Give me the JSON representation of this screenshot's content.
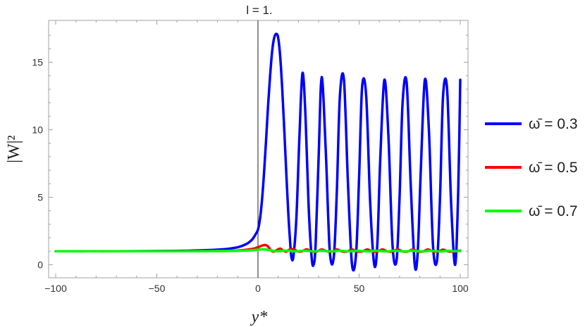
{
  "chart_data": {
    "type": "line",
    "title": "l = 1.",
    "xlabel": "y*",
    "ylabel": "|W|²",
    "xlim": [
      -100,
      100
    ],
    "ylim": [
      -1,
      18
    ],
    "xticks": [
      -100,
      -50,
      0,
      50,
      100
    ],
    "xtick_labels": [
      "−100",
      "−50",
      "0",
      "50",
      "100"
    ],
    "yticks": [
      0,
      5,
      10,
      15
    ],
    "ytick_labels": [
      "0",
      "5",
      "10",
      "15"
    ],
    "grid": false,
    "legend_position": "right",
    "series": [
      {
        "name": "ω̄ = 0.3",
        "color": "#0000ff",
        "x": [
          -100,
          -80,
          -60,
          -40,
          -30,
          -20,
          -15,
          -10,
          -7,
          -5,
          -3,
          -2,
          -1,
          0,
          1,
          2,
          3,
          4,
          5,
          6,
          7,
          8,
          9,
          10,
          11,
          12,
          13,
          14,
          15,
          15.8,
          16.5,
          17.5,
          19,
          20.5,
          22,
          23.5,
          25,
          26.5,
          27.5,
          28.5,
          30,
          31.5,
          33.5,
          35.5,
          37.5,
          39,
          40.5,
          42.5,
          44.5,
          46.5,
          48.5,
          50,
          51.5,
          53.5,
          55.5,
          57.5,
          59,
          60.5,
          62.5,
          64.5,
          66.5,
          68.5,
          70,
          71.5,
          73.5,
          75.5,
          77.5,
          79,
          80.5,
          82.5,
          84.5,
          86.5,
          88.5,
          90,
          91.5,
          93.5,
          95.5,
          97.5,
          99,
          100
        ],
        "y": [
          1.0,
          1.0,
          1.01,
          1.03,
          1.06,
          1.12,
          1.18,
          1.3,
          1.45,
          1.6,
          1.85,
          2.05,
          2.3,
          2.6,
          3.4,
          4.8,
          6.8,
          9.2,
          11.8,
          14.0,
          15.8,
          16.8,
          17.1,
          16.8,
          15.4,
          13.0,
          10.0,
          6.8,
          3.8,
          1.9,
          0.6,
          0.6,
          3.5,
          9.5,
          14.2,
          11.0,
          4.5,
          0.6,
          0.0,
          1.5,
          8.0,
          13.9,
          8.5,
          1.0,
          0.6,
          5.5,
          12.5,
          13.7,
          6.0,
          0.0,
          0.8,
          6.5,
          13.2,
          12.5,
          4.5,
          0.0,
          1.5,
          8.0,
          13.7,
          9.5,
          1.5,
          0.3,
          5.0,
          12.0,
          13.5,
          6.0,
          0.0,
          1.0,
          7.0,
          13.7,
          10.0,
          1.5,
          0.3,
          5.0,
          12.5,
          13.0,
          4.5,
          0.0,
          5.5,
          13.7
        ]
      },
      {
        "name": "ω̄ = 0.5",
        "color": "#ff0000",
        "x": [
          -100,
          -60,
          -30,
          -15,
          -8,
          -4,
          -2,
          -1,
          0,
          1,
          2,
          3,
          4,
          5,
          6,
          7,
          8,
          9.5,
          11,
          12.5,
          14,
          15.5,
          17.5,
          19.5,
          21.5,
          24,
          26.5,
          29,
          31.5,
          34,
          36.5,
          39,
          41.5,
          44,
          46.5,
          49,
          51.5,
          54,
          56.5,
          59,
          61.5,
          64,
          66.5,
          69,
          71.5,
          74,
          76.5,
          79,
          81.5,
          84,
          86.5,
          89,
          91.5,
          94,
          96.5,
          100
        ],
        "y": [
          1.0,
          1.0,
          1.01,
          1.03,
          1.08,
          1.15,
          1.2,
          1.25,
          1.3,
          1.36,
          1.42,
          1.46,
          1.45,
          1.35,
          1.15,
          1.0,
          0.98,
          1.1,
          1.2,
          1.05,
          0.97,
          1.12,
          1.16,
          1.0,
          0.98,
          1.14,
          1.0,
          0.97,
          1.13,
          1.0,
          0.98,
          1.13,
          0.99,
          0.98,
          1.13,
          0.99,
          0.98,
          1.13,
          0.99,
          0.98,
          1.13,
          0.99,
          0.98,
          1.13,
          0.99,
          0.98,
          1.13,
          0.99,
          0.98,
          1.13,
          0.99,
          0.98,
          1.12,
          0.99,
          0.98,
          1.05
        ]
      },
      {
        "name": "ω̄ = 0.7",
        "color": "#00ff00",
        "x": [
          -100,
          -60,
          -30,
          -15,
          -8,
          -4,
          -2,
          0,
          2,
          4,
          6,
          8,
          10,
          13,
          16,
          19,
          22,
          25,
          28,
          31,
          34,
          37,
          40,
          43,
          46,
          49,
          52,
          55,
          58,
          61,
          64,
          67,
          70,
          73,
          76,
          79,
          82,
          85,
          88,
          91,
          94,
          97,
          100
        ],
        "y": [
          1.0,
          1.0,
          1.0,
          1.02,
          1.04,
          1.07,
          1.09,
          1.12,
          1.14,
          1.13,
          1.08,
          1.02,
          1.0,
          1.05,
          1.02,
          0.99,
          1.04,
          1.02,
          0.99,
          1.04,
          1.01,
          0.99,
          1.04,
          1.01,
          0.99,
          1.04,
          1.01,
          0.99,
          1.04,
          1.01,
          0.99,
          1.04,
          1.01,
          0.99,
          1.04,
          1.01,
          0.99,
          1.04,
          1.01,
          0.99,
          1.04,
          1.01,
          1.02
        ]
      }
    ]
  }
}
